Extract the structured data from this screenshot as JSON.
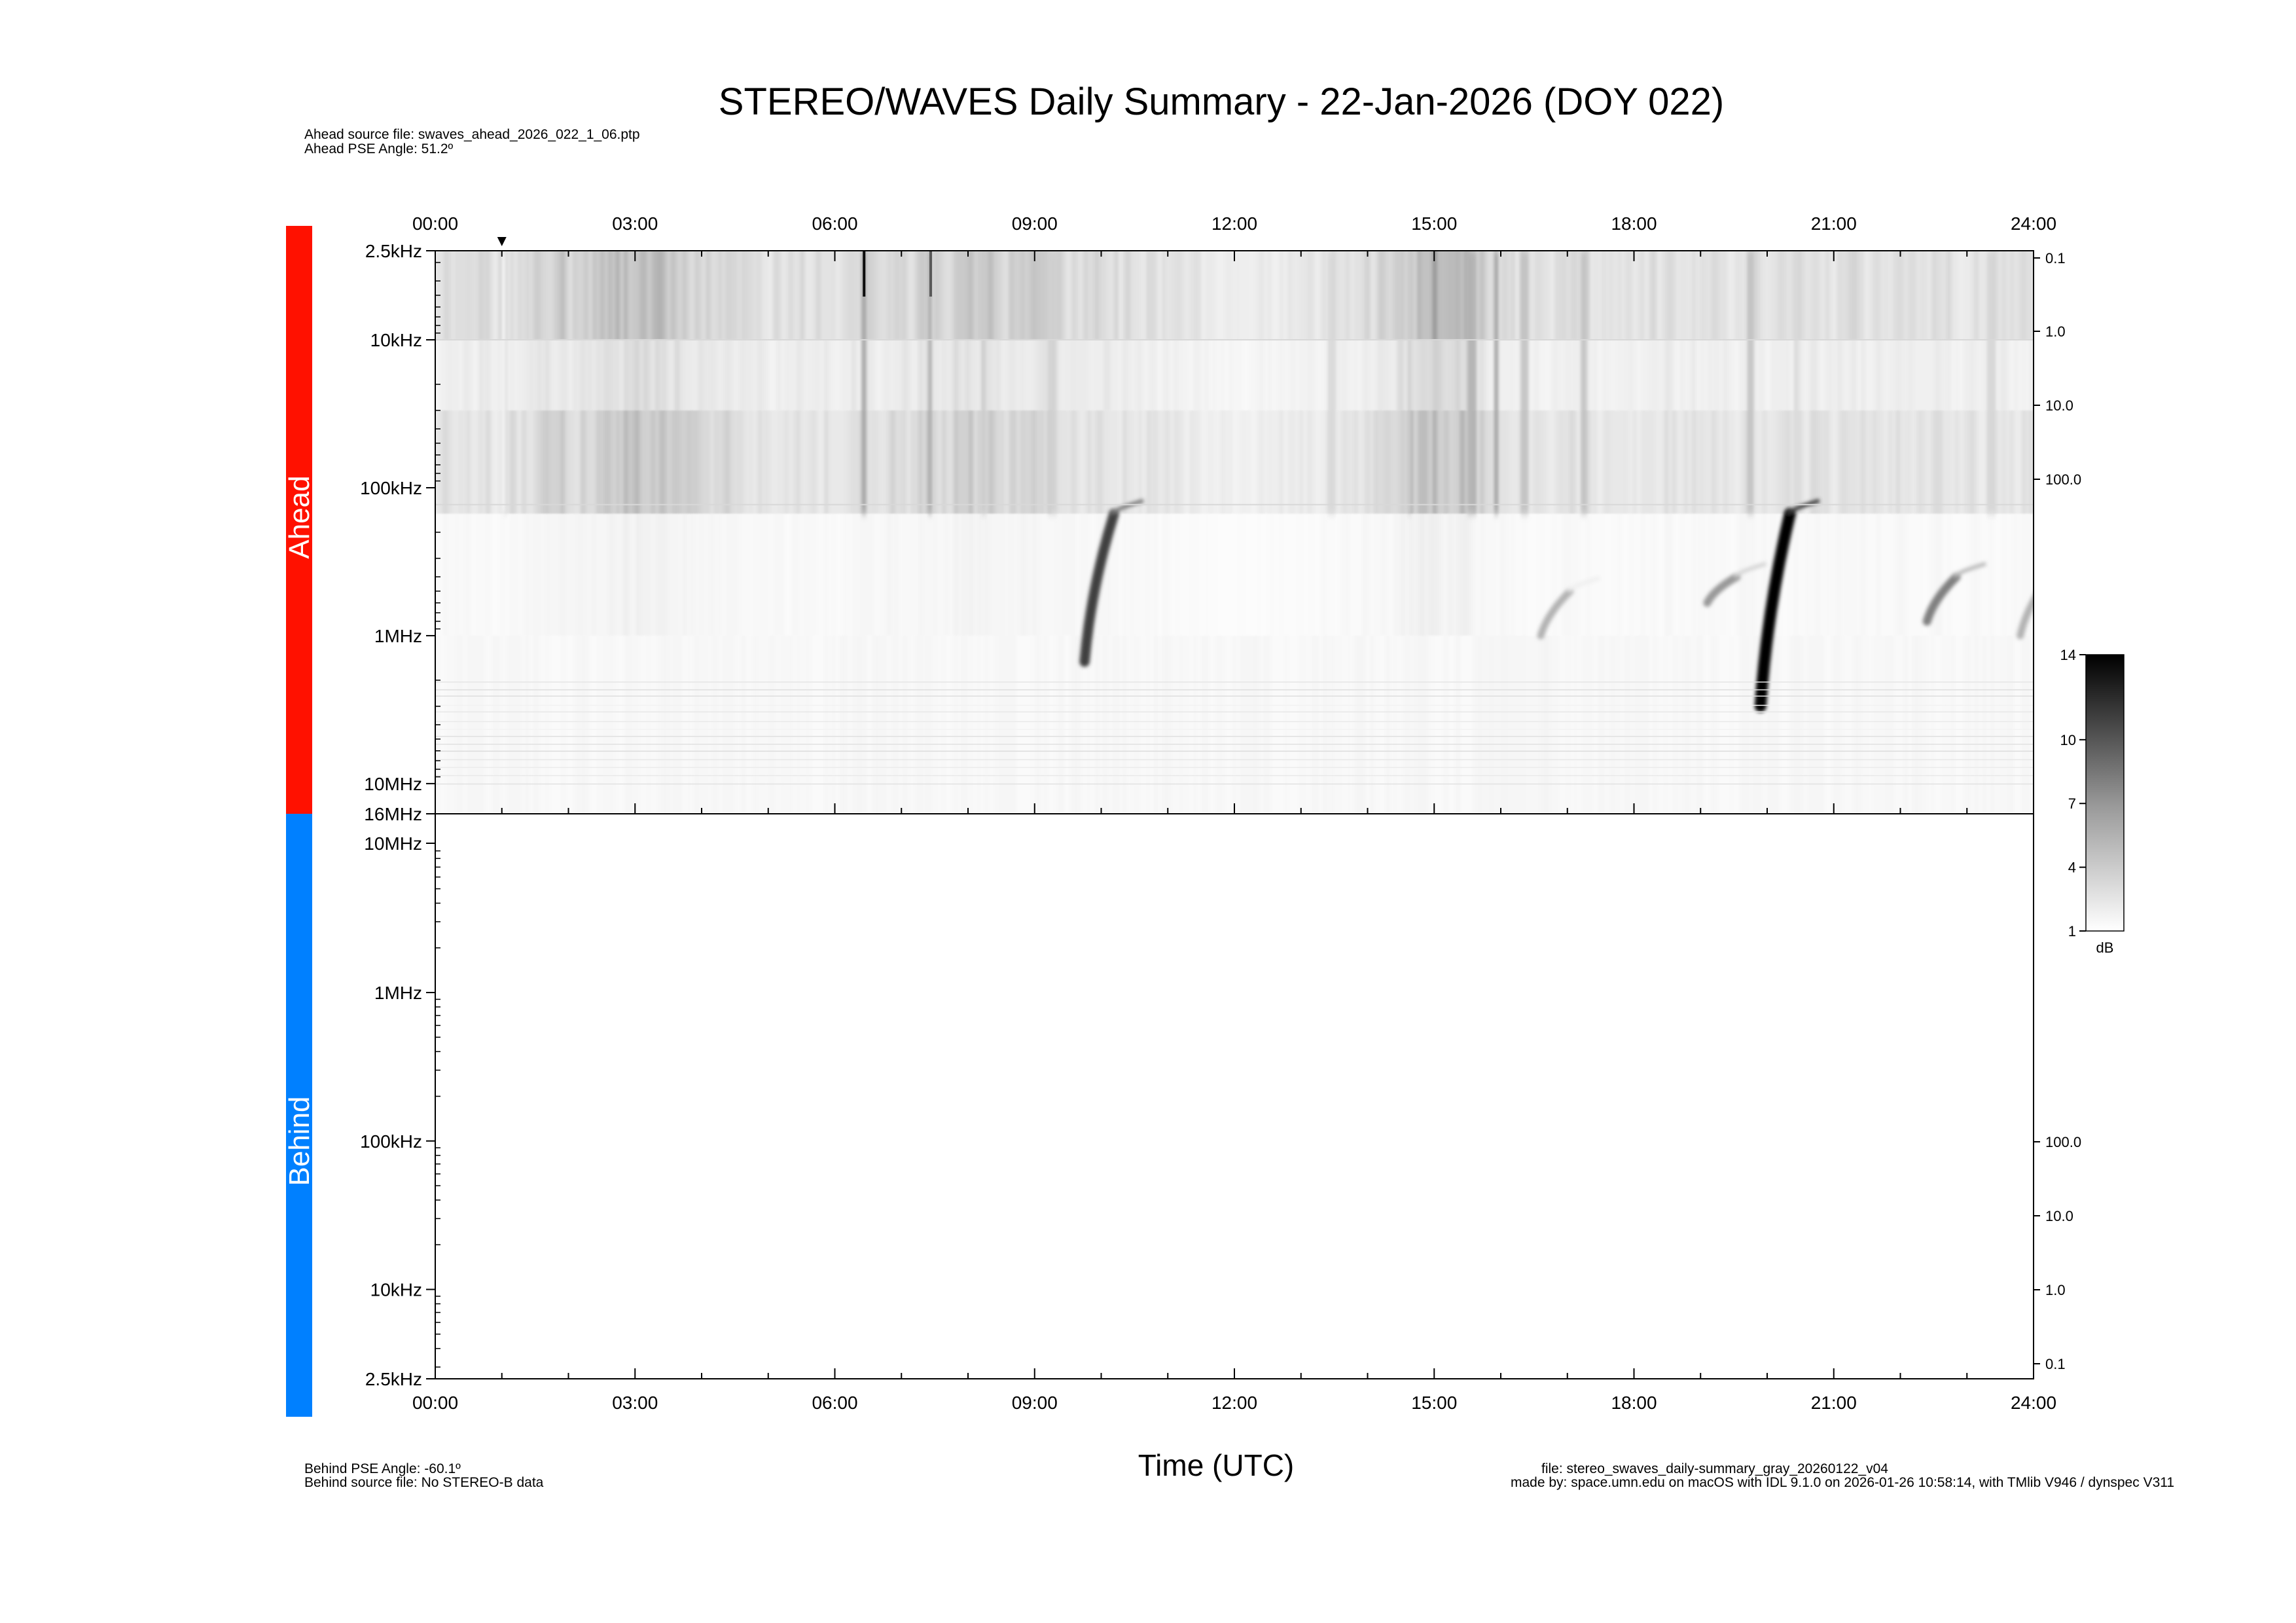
{
  "title": "STEREO/WAVES Daily Summary - 22-Jan-2026 (DOY 022)",
  "ahead_info": {
    "source_file": "Ahead source file: swaves_ahead_2026_022_1_06.ptp",
    "pse_angle": "Ahead PSE Angle:   51.2º"
  },
  "behind_info": {
    "pse_angle": "Behind PSE Angle:  -60.1º",
    "source_file": "Behind source file: No STEREO-B data"
  },
  "footer": {
    "file": "file: stereo_swaves_daily-summary_gray_20260122_v04",
    "made_by": "made by: space.umn.edu on macOS with IDL 9.1.0 on 2026-01-26 10:58:14, with TMlib V946 / dynspec V311"
  },
  "chart_data": {
    "type": "heatmap",
    "xlabel": "Time (UTC)",
    "x_ticks": [
      "00:00",
      "03:00",
      "06:00",
      "09:00",
      "12:00",
      "15:00",
      "18:00",
      "21:00",
      "24:00"
    ],
    "x_range_hours": [
      0,
      24
    ],
    "panels": [
      {
        "name": "Ahead",
        "color": "#ff1100",
        "y_ticks": [
          "2.5kHz",
          "10kHz",
          "100kHz",
          "1MHz",
          "10MHz",
          "16MHz"
        ],
        "y_tick_hz": [
          2500,
          10000,
          100000,
          1000000,
          10000000,
          16000000
        ],
        "y_range_hz": [
          2500,
          16000000
        ],
        "right_ticks": [
          "0.1",
          "1.0",
          "10.0",
          "100.0"
        ],
        "marker_hour": 1.0,
        "has_data": true
      },
      {
        "name": "Behind",
        "color": "#0080ff",
        "y_ticks": [
          "10MHz",
          "1MHz",
          "100kHz",
          "10kHz",
          "2.5kHz"
        ],
        "y_tick_hz": [
          10000000,
          1000000,
          100000,
          10000,
          2500
        ],
        "y_range_hz": [
          16000000,
          2500
        ],
        "right_ticks": [
          "100.0",
          "10.0",
          "1.0",
          "0.1"
        ],
        "has_data": false
      }
    ],
    "colorbar": {
      "label": "dB",
      "ticks": [
        "14",
        "10",
        "7",
        "4",
        "1"
      ],
      "range": [
        1,
        14
      ]
    },
    "events": [
      {
        "start_hour": 9.75,
        "start_hz": 150000,
        "end_hz": 1500000,
        "intensity": 0.75
      },
      {
        "start_hour": 19.9,
        "start_hz": 150000,
        "end_hz": 3000000,
        "intensity": 1.0
      },
      {
        "start_hour": 22.4,
        "start_hz": 400000,
        "end_hz": 800000,
        "intensity": 0.5
      },
      {
        "start_hour": 19.1,
        "start_hz": 400000,
        "end_hz": 600000,
        "intensity": 0.4
      },
      {
        "start_hour": 16.6,
        "start_hz": 500000,
        "end_hz": 1000000,
        "intensity": 0.3
      },
      {
        "start_hour": 23.8,
        "start_hz": 400000,
        "end_hz": 1000000,
        "intensity": 0.3
      }
    ]
  }
}
